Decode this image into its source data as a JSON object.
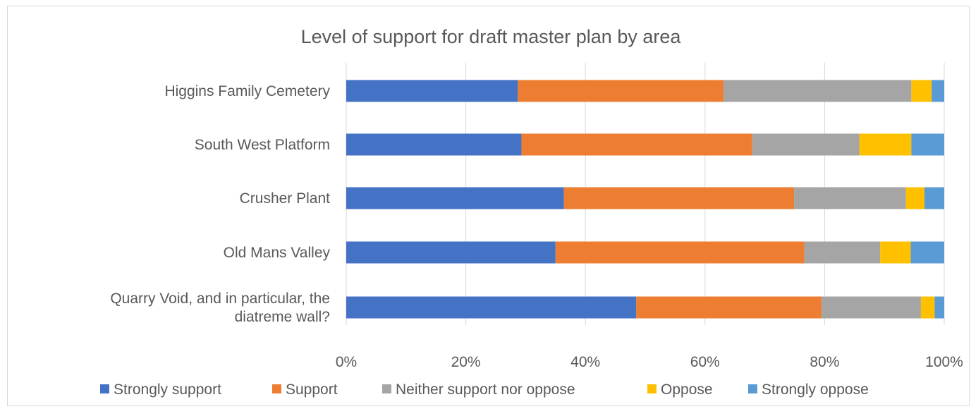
{
  "chart_data": {
    "type": "bar",
    "orientation": "horizontal",
    "stacked": "percent",
    "title": "Level of support for draft master plan by area",
    "categories": [
      "Higgins Family Cemetery",
      "South West Platform",
      "Crusher Plant",
      "Old Mans Valley",
      "Quarry Void, and in particular, the diatreme wall?"
    ],
    "category_lines": [
      [
        "Higgins Family Cemetery"
      ],
      [
        "South West Platform"
      ],
      [
        "Crusher Plant"
      ],
      [
        "Old Mans Valley"
      ],
      [
        "Quarry Void, and in particular, the",
        "diatreme wall?"
      ]
    ],
    "series": [
      {
        "name": "Strongly support",
        "color": "#4472C4",
        "values": [
          28.7,
          29.3,
          36.4,
          35.0,
          48.5
        ]
      },
      {
        "name": "Support",
        "color": "#ED7D31",
        "values": [
          34.4,
          38.6,
          38.5,
          41.6,
          31.0
        ]
      },
      {
        "name": "Neither support nor oppose",
        "color": "#A5A5A5",
        "values": [
          31.4,
          17.9,
          18.7,
          12.7,
          16.6
        ]
      },
      {
        "name": "Oppose",
        "color": "#FFC000",
        "values": [
          3.4,
          8.7,
          3.1,
          5.1,
          2.3
        ]
      },
      {
        "name": "Strongly oppose",
        "color": "#5B9BD5",
        "values": [
          2.1,
          5.5,
          3.3,
          5.6,
          1.6
        ]
      }
    ],
    "xlim": [
      0,
      100
    ],
    "x_ticks": [
      "0%",
      "20%",
      "40%",
      "60%",
      "80%",
      "100%"
    ],
    "xlabel": "",
    "ylabel": "",
    "grid": true,
    "legend": "bottom"
  }
}
